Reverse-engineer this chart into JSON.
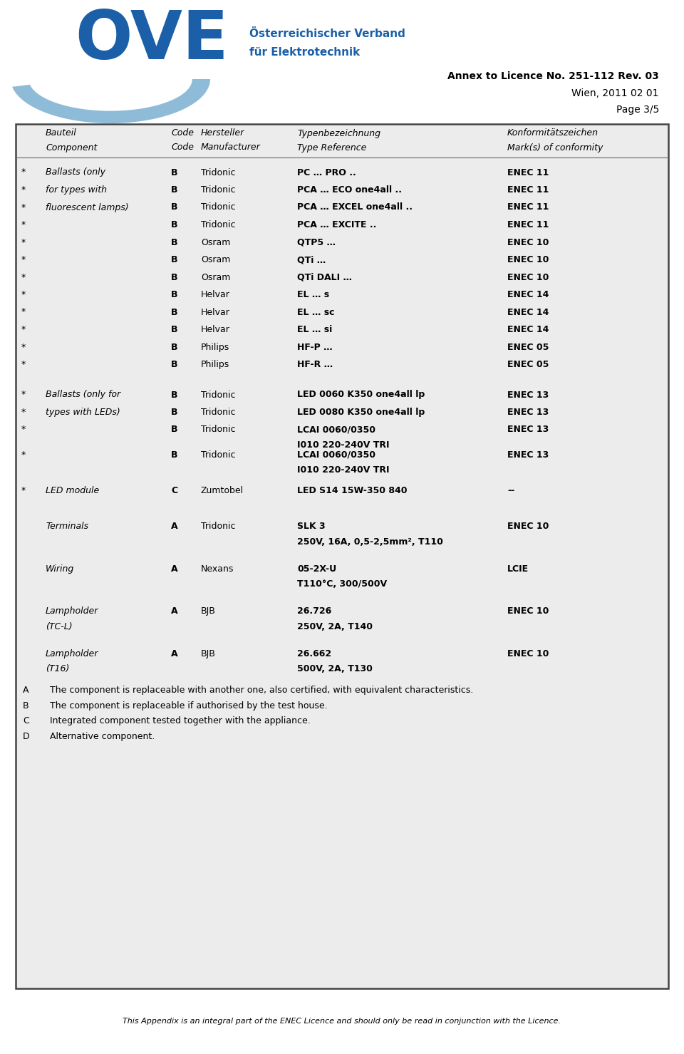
{
  "page_bg": "#ffffff",
  "header_text1": "Annex to Licence No. 251-112 Rev. 03",
  "header_text2": "Wien, 2011 02 01",
  "header_text3": "Page 3/5",
  "ove_text1": "Österreichischer Verband",
  "ove_text2": "für Elektrotechnik",
  "ove_color": "#1a5fa8",
  "swoosh_color": "#7ab0d0",
  "table_bg": "#ececec",
  "border_color": "#444444",
  "text_color": "#000000",
  "footnotes": [
    [
      "A",
      "The component is replaceable with another one, also certified, with equivalent characteristics."
    ],
    [
      "B",
      "The component is replaceable if authorised by the test house."
    ],
    [
      "C",
      "Integrated component tested together with the appliance."
    ],
    [
      "D",
      "Alternative component."
    ]
  ],
  "footer_text": "This Appendix is an integral part of the ENEC Licence and should only be read in conjunction with the Licence.",
  "rows_group1": [
    {
      "star": true,
      "component": "Ballasts (only",
      "code": "B",
      "mfr": "Tridonic",
      "typeref": "PC … PRO ..",
      "typeref2": "",
      "enec": "ENEC 11"
    },
    {
      "star": true,
      "component": "for types with",
      "code": "B",
      "mfr": "Tridonic",
      "typeref": "PCA … ECO one4all ..",
      "typeref2": "",
      "enec": "ENEC 11"
    },
    {
      "star": true,
      "component": "fluorescent lamps)",
      "code": "B",
      "mfr": "Tridonic",
      "typeref": "PCA … EXCEL one4all ..",
      "typeref2": "",
      "enec": "ENEC 11"
    },
    {
      "star": true,
      "component": "",
      "code": "B",
      "mfr": "Tridonic",
      "typeref": "PCA … EXCITE ..",
      "typeref2": "",
      "enec": "ENEC 11"
    },
    {
      "star": true,
      "component": "",
      "code": "B",
      "mfr": "Osram",
      "typeref": "QTP5 …",
      "typeref2": "",
      "enec": "ENEC 10"
    },
    {
      "star": true,
      "component": "",
      "code": "B",
      "mfr": "Osram",
      "typeref": "QTi …",
      "typeref2": "",
      "enec": "ENEC 10"
    },
    {
      "star": true,
      "component": "",
      "code": "B",
      "mfr": "Osram",
      "typeref": "QTi DALI …",
      "typeref2": "",
      "enec": "ENEC 10"
    },
    {
      "star": true,
      "component": "",
      "code": "B",
      "mfr": "Helvar",
      "typeref": "EL … s",
      "typeref2": "",
      "enec": "ENEC 14"
    },
    {
      "star": true,
      "component": "",
      "code": "B",
      "mfr": "Helvar",
      "typeref": "EL … sc",
      "typeref2": "",
      "enec": "ENEC 14"
    },
    {
      "star": true,
      "component": "",
      "code": "B",
      "mfr": "Helvar",
      "typeref": "EL … si",
      "typeref2": "",
      "enec": "ENEC 14"
    },
    {
      "star": true,
      "component": "",
      "code": "B",
      "mfr": "Philips",
      "typeref": "HF-P …",
      "typeref2": "",
      "enec": "ENEC 05"
    },
    {
      "star": true,
      "component": "",
      "code": "B",
      "mfr": "Philips",
      "typeref": "HF-R …",
      "typeref2": "",
      "enec": "ENEC 05"
    }
  ],
  "rows_group2": [
    {
      "star": true,
      "component": "Ballasts (only for",
      "code": "B",
      "mfr": "Tridonic",
      "typeref": "LED 0060 K350 one4all lp",
      "typeref2": "",
      "enec": "ENEC 13"
    },
    {
      "star": true,
      "component": "types with LEDs)",
      "code": "B",
      "mfr": "Tridonic",
      "typeref": "LED 0080 K350 one4all lp",
      "typeref2": "",
      "enec": "ENEC 13"
    },
    {
      "star": true,
      "component": "",
      "code": "B",
      "mfr": "Tridonic",
      "typeref": "LCAI 0060/0350",
      "typeref2": "I010 220-240V TRI",
      "enec": "ENEC 13"
    },
    {
      "star": true,
      "component": "",
      "code": "B",
      "mfr": "Tridonic",
      "typeref": "LCAI 0060/0350",
      "typeref2": "I010 220-240V TRI",
      "enec": "ENEC 13"
    }
  ],
  "row_led": {
    "star": true,
    "component": "LED module",
    "code": "C",
    "mfr": "Zumtobel",
    "typeref": "LED S14 15W-350 840",
    "typeref2": "",
    "enec": "--"
  },
  "row_term": {
    "star": false,
    "component": "Terminals",
    "code": "A",
    "mfr": "Tridonic",
    "typeref": "SLK 3",
    "typeref2": "250V, 16A, 0,5-2,5mm², T110",
    "enec": "ENEC 10"
  },
  "row_wire": {
    "star": false,
    "component": "Wiring",
    "code": "A",
    "mfr": "Nexans",
    "typeref": "05-2X-U",
    "typeref2": "T110°C, 300/500V",
    "enec": "LCIE"
  },
  "row_lamp1": {
    "star": false,
    "component1": "Lampholder",
    "component2": "(TC-L)",
    "code": "A",
    "mfr": "BJB",
    "typeref": "26.726",
    "typeref2": "250V, 2A, T140",
    "enec": "ENEC 10"
  },
  "row_lamp2": {
    "star": false,
    "component1": "Lampholder",
    "component2": "(T16)",
    "code": "A",
    "mfr": "BJB",
    "typeref": "26.662",
    "typeref2": "500V, 2A, T130",
    "enec": "ENEC 10"
  }
}
